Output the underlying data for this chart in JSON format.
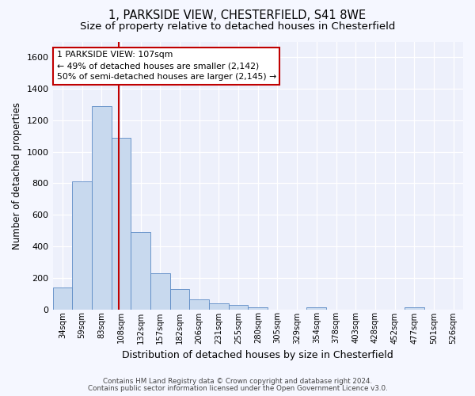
{
  "title1": "1, PARKSIDE VIEW, CHESTERFIELD, S41 8WE",
  "title2": "Size of property relative to detached houses in Chesterfield",
  "xlabel": "Distribution of detached houses by size in Chesterfield",
  "ylabel": "Number of detached properties",
  "categories": [
    "34sqm",
    "59sqm",
    "83sqm",
    "108sqm",
    "132sqm",
    "157sqm",
    "182sqm",
    "206sqm",
    "231sqm",
    "255sqm",
    "280sqm",
    "305sqm",
    "329sqm",
    "354sqm",
    "378sqm",
    "403sqm",
    "428sqm",
    "452sqm",
    "477sqm",
    "501sqm",
    "526sqm"
  ],
  "bar_heights": [
    140,
    810,
    1290,
    1090,
    490,
    230,
    130,
    65,
    40,
    30,
    15,
    0,
    0,
    15,
    0,
    0,
    0,
    0,
    15,
    0,
    0
  ],
  "bar_color": "#c8d9ee",
  "bar_edge_color": "#5b8ac5",
  "ylim": [
    0,
    1700
  ],
  "yticks": [
    0,
    200,
    400,
    600,
    800,
    1000,
    1200,
    1400,
    1600
  ],
  "vline_x": 2.88,
  "vline_color": "#c00000",
  "annotation_line1": "1 PARKSIDE VIEW: 107sqm",
  "annotation_line2": "← 49% of detached houses are smaller (2,142)",
  "annotation_line3": "50% of semi-detached houses are larger (2,145) →",
  "annotation_box_color": "#ffffff",
  "annotation_box_edge": "#c00000",
  "footer1": "Contains HM Land Registry data © Crown copyright and database right 2024.",
  "footer2": "Contains public sector information licensed under the Open Government Licence v3.0.",
  "bg_color": "#f5f7ff",
  "plot_bg_color": "#edf0fb",
  "grid_color": "#ffffff",
  "title1_fontsize": 10.5,
  "title2_fontsize": 9.5
}
